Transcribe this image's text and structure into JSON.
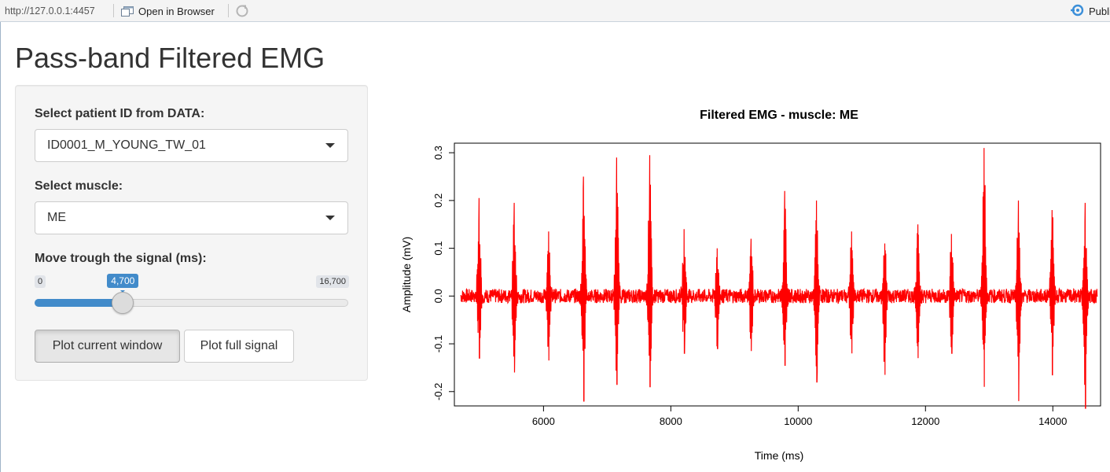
{
  "viewer": {
    "url": "http://127.0.0.1:4457",
    "open_in_browser": "Open in Browser",
    "publish": "Publi"
  },
  "page": {
    "title": "Pass-band Filtered EMG"
  },
  "sidebar": {
    "patient_label": "Select patient ID from DATA:",
    "patient_value": "ID0001_M_YOUNG_TW_01",
    "muscle_label": "Select muscle:",
    "muscle_value": "ME",
    "slider_label": "Move trough the signal (ms):",
    "slider": {
      "min_label": "0",
      "max_label": "16,700",
      "value_label": "4,700",
      "min": 0,
      "max": 16700,
      "value": 4700
    },
    "btn_current": "Plot current window",
    "btn_full": "Plot full signal"
  },
  "colors": {
    "signal": "#ff0000",
    "accent": "#428bca"
  },
  "chart_data": {
    "type": "line",
    "title": "Filtered EMG - muscle: ME",
    "xlabel": "Time (ms)",
    "ylabel": "Amplitude (mV)",
    "xlim": [
      4600,
      14750
    ],
    "ylim": [
      -0.23,
      0.32
    ],
    "x_ticks": [
      6000,
      8000,
      10000,
      12000,
      14000
    ],
    "x_tick_labels": [
      "6000",
      "8000",
      "10000",
      "12000",
      "14000"
    ],
    "y_ticks": [
      -0.2,
      -0.1,
      0.0,
      0.1,
      0.2,
      0.3
    ],
    "y_tick_labels": [
      "-0.2",
      "-0.1",
      "0.0",
      "0.1",
      "0.2",
      "0.3"
    ],
    "grid": false,
    "signal_range_ms": [
      4700,
      14700
    ],
    "bursts": [
      {
        "t": 4990,
        "max": 0.205,
        "min": -0.13
      },
      {
        "t": 5540,
        "max": 0.195,
        "min": -0.16
      },
      {
        "t": 6080,
        "max": 0.135,
        "min": -0.135
      },
      {
        "t": 6630,
        "max": 0.25,
        "min": -0.22
      },
      {
        "t": 7150,
        "max": 0.29,
        "min": -0.185
      },
      {
        "t": 7670,
        "max": 0.295,
        "min": -0.19
      },
      {
        "t": 8210,
        "max": 0.14,
        "min": -0.12
      },
      {
        "t": 8730,
        "max": 0.1,
        "min": -0.11
      },
      {
        "t": 9260,
        "max": 0.12,
        "min": -0.115
      },
      {
        "t": 9790,
        "max": 0.22,
        "min": -0.145
      },
      {
        "t": 10290,
        "max": 0.2,
        "min": -0.18
      },
      {
        "t": 10840,
        "max": 0.135,
        "min": -0.12
      },
      {
        "t": 11360,
        "max": 0.11,
        "min": -0.165
      },
      {
        "t": 11880,
        "max": 0.15,
        "min": -0.13
      },
      {
        "t": 12410,
        "max": 0.13,
        "min": -0.12
      },
      {
        "t": 12920,
        "max": 0.31,
        "min": -0.19
      },
      {
        "t": 13460,
        "max": 0.2,
        "min": -0.22
      },
      {
        "t": 13990,
        "max": 0.18,
        "min": -0.165
      },
      {
        "t": 14510,
        "max": 0.195,
        "min": -0.235
      }
    ]
  }
}
